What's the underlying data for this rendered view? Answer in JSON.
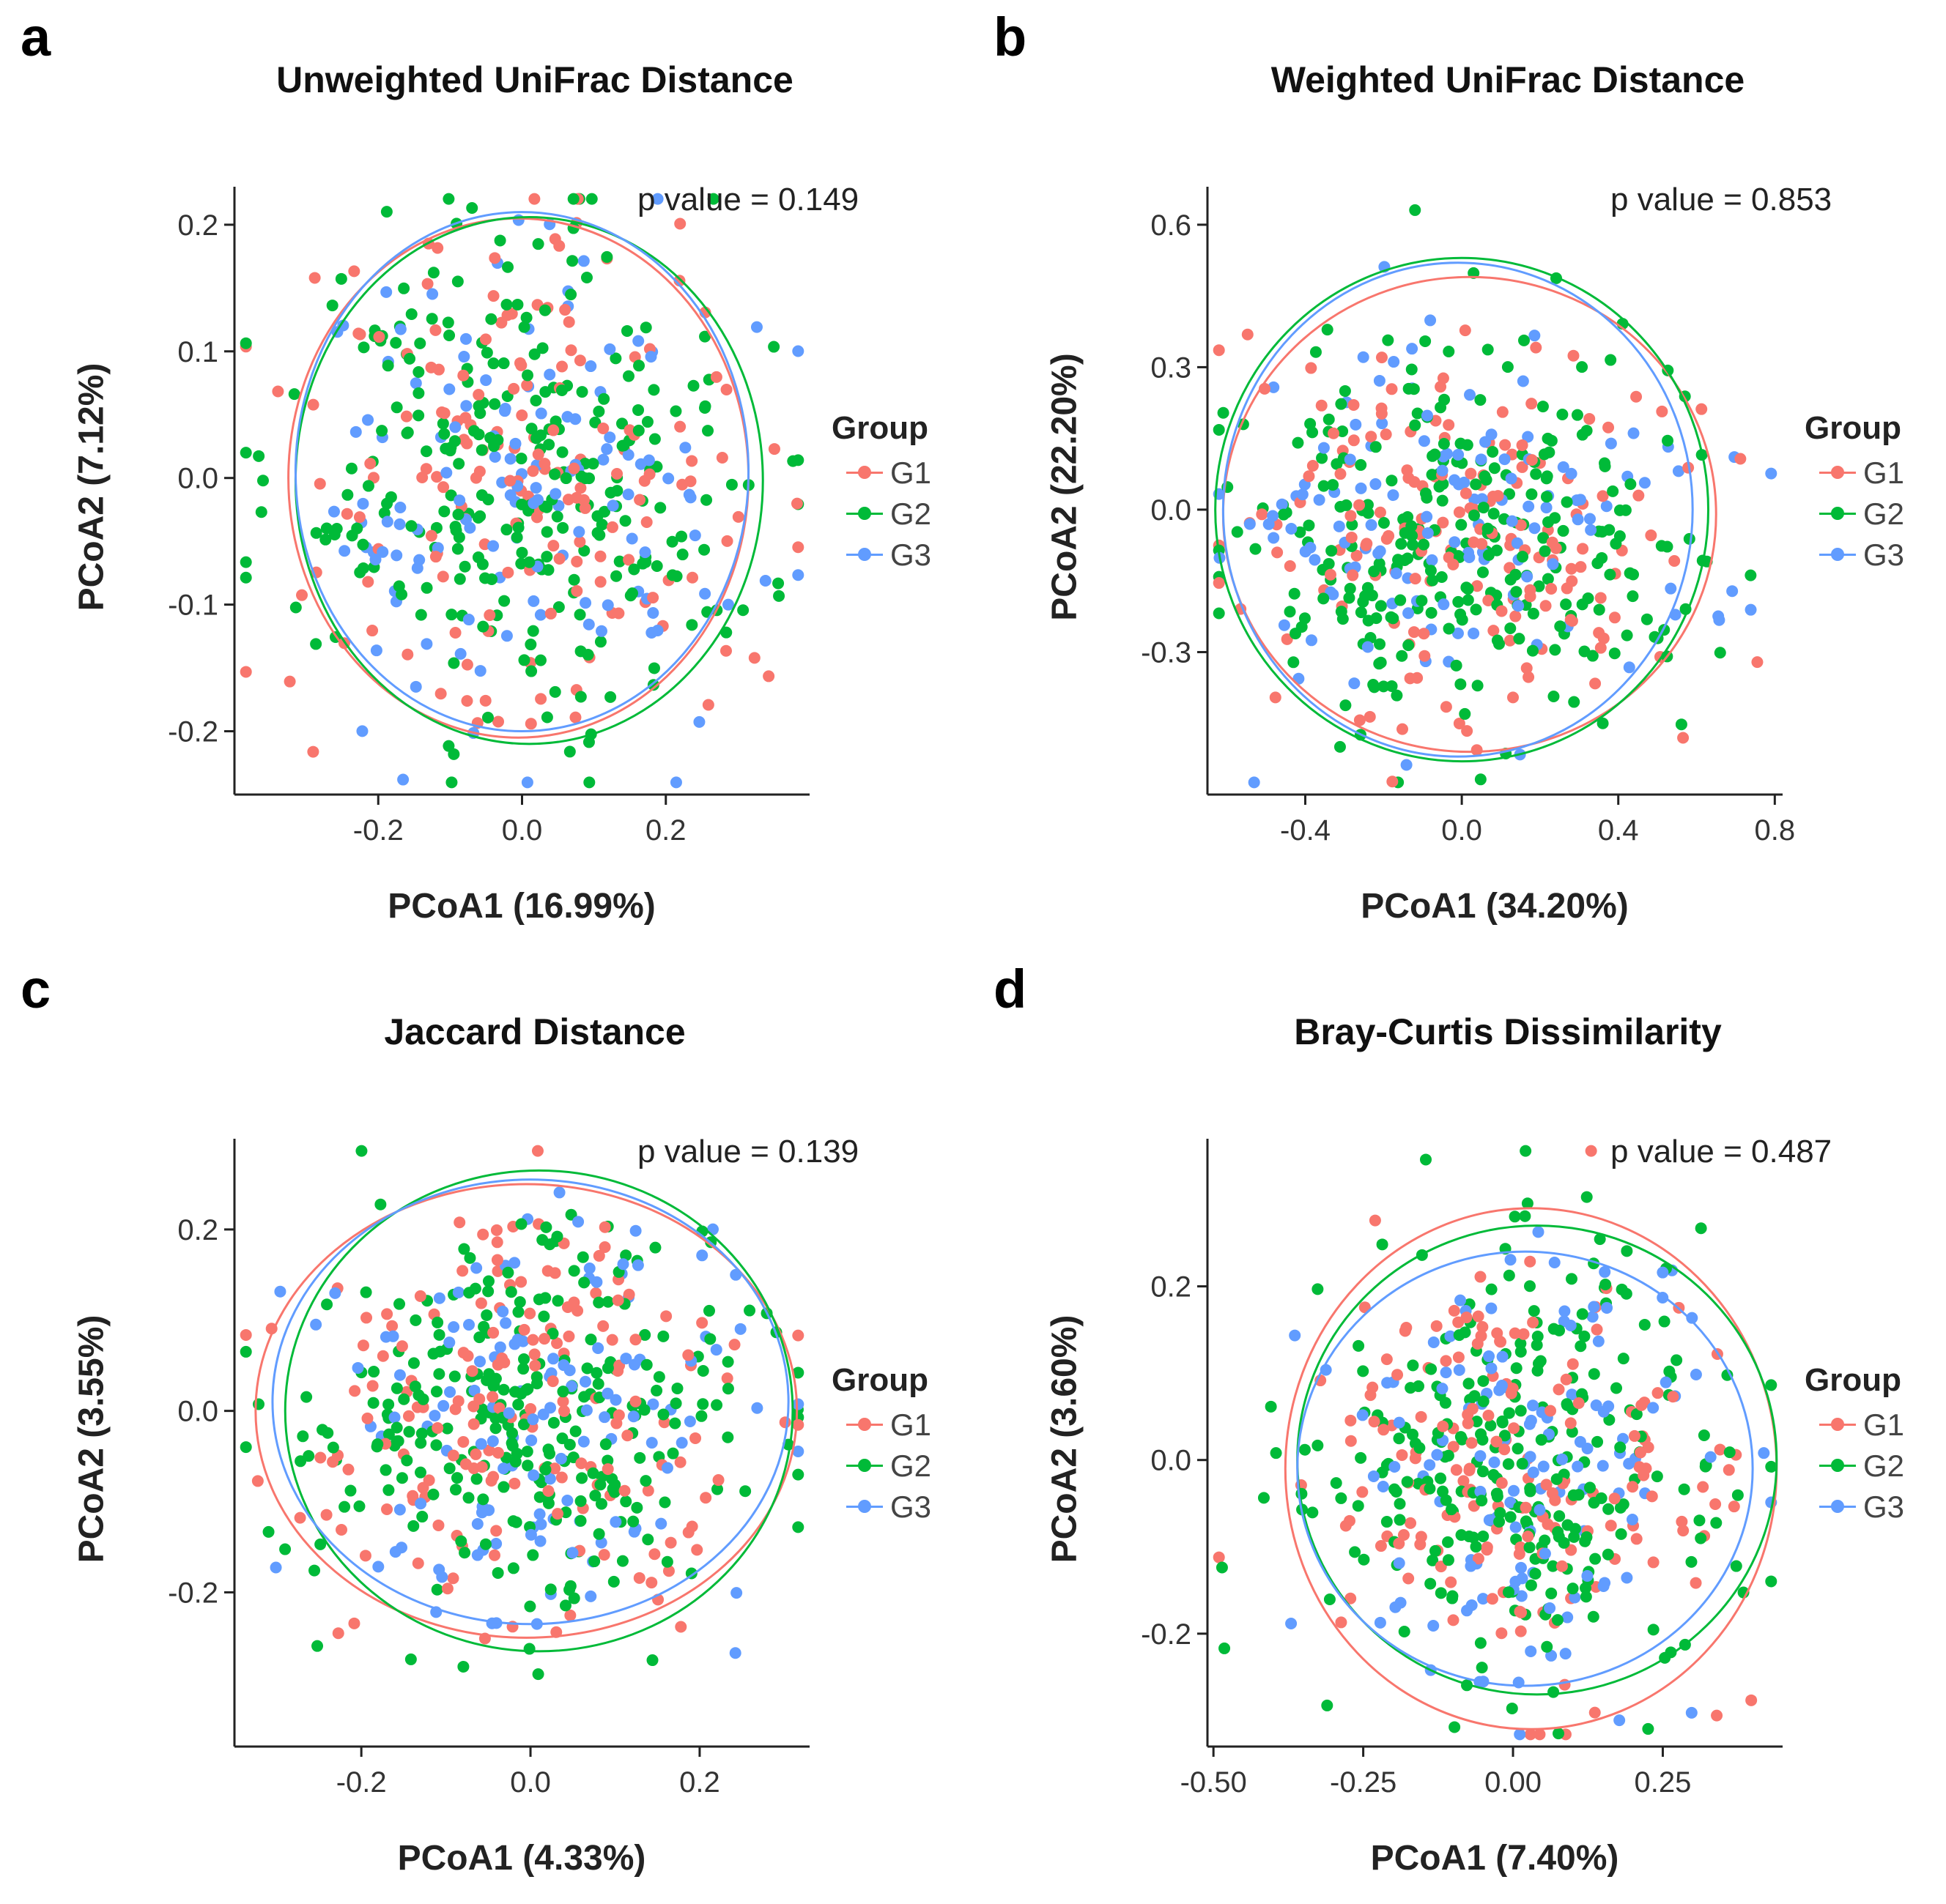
{
  "colors": {
    "G1": "#F8766D",
    "G2": "#00BA38",
    "G3": "#619CFF"
  },
  "legend": {
    "title": "Group",
    "items": [
      "G1",
      "G2",
      "G3"
    ]
  },
  "panels": [
    {
      "label": "a",
      "title": "Unweighted UniFrac Distance",
      "pvalue": "p value = 0.149",
      "xlabel": "PCoA1 (16.99%)",
      "ylabel": "PCoA2 (7.12%)"
    },
    {
      "label": "b",
      "title": "Weighted UniFrac Distance",
      "pvalue": "p value = 0.853",
      "xlabel": "PCoA1 (34.20%)",
      "ylabel": "PCoA2 (22.20%)"
    },
    {
      "label": "c",
      "title": "Jaccard Distance",
      "pvalue": "p value = 0.139",
      "xlabel": "PCoA1 (4.33%)",
      "ylabel": "PCoA2 (3.55%)"
    },
    {
      "label": "d",
      "title": "Bray-Curtis Dissimilarity",
      "pvalue": "p value = 0.487",
      "xlabel": "PCoA1 (7.40%)",
      "ylabel": "PCoA2 (3.60%)"
    }
  ],
  "chart_data": [
    {
      "type": "scatter",
      "title": "Unweighted UniFrac Distance",
      "xlabel": "PCoA1 (16.99%)",
      "ylabel": "PCoA2 (7.12%)",
      "xlim": [
        -0.4,
        0.4
      ],
      "ylim": [
        -0.25,
        0.23
      ],
      "xticks": [
        -0.2,
        0.0,
        0.2
      ],
      "xtick_labels": [
        "-0.2",
        "0.0",
        "0.2"
      ],
      "yticks": [
        -0.2,
        -0.1,
        0.0,
        0.1,
        0.2
      ],
      "ytick_labels": [
        "-0.2",
        "-0.1",
        "0.0",
        "0.1",
        "0.2"
      ],
      "annotation": "p value = 0.149",
      "legend_title": "Group",
      "ellipses": [
        {
          "name": "G1",
          "center": [
            -0.005,
            0.0
          ],
          "radius": [
            0.32,
            0.205
          ]
        },
        {
          "name": "G2",
          "center": [
            0.01,
            -0.002
          ],
          "radius": [
            0.325,
            0.208
          ]
        },
        {
          "name": "G3",
          "center": [
            0.0,
            0.005
          ],
          "radius": [
            0.315,
            0.205
          ]
        }
      ],
      "series": [
        {
          "name": "G1",
          "center": [
            0.0,
            0.0
          ],
          "spread": [
            0.16,
            0.1
          ],
          "n": 170
        },
        {
          "name": "G2",
          "center": [
            0.0,
            0.0
          ],
          "spread": [
            0.16,
            0.1
          ],
          "n": 280
        },
        {
          "name": "G3",
          "center": [
            0.0,
            0.0
          ],
          "spread": [
            0.16,
            0.1
          ],
          "n": 130
        }
      ]
    },
    {
      "type": "scatter",
      "title": "Weighted UniFrac Distance",
      "xlabel": "PCoA1 (34.20%)",
      "ylabel": "PCoA2 (22.20%)",
      "xlim": [
        -0.65,
        0.82
      ],
      "ylim": [
        -0.6,
        0.68
      ],
      "xticks": [
        -0.4,
        0.0,
        0.4,
        0.8
      ],
      "xtick_labels": [
        "-0.4",
        "0.0",
        "0.4",
        "0.8"
      ],
      "yticks": [
        -0.3,
        0.0,
        0.3,
        0.6
      ],
      "ytick_labels": [
        "-0.3",
        "0.0",
        "0.3",
        "0.6"
      ],
      "annotation": "p value = 0.853",
      "legend_title": "Group",
      "ellipses": [
        {
          "name": "G1",
          "center": [
            0.02,
            -0.01
          ],
          "radius": [
            0.63,
            0.5
          ]
        },
        {
          "name": "G2",
          "center": [
            0.0,
            0.0
          ],
          "radius": [
            0.63,
            0.53
          ]
        },
        {
          "name": "G3",
          "center": [
            -0.01,
            0.0
          ],
          "radius": [
            0.6,
            0.52
          ]
        }
      ],
      "series": [
        {
          "name": "G1",
          "center": [
            0.0,
            -0.05
          ],
          "spread": [
            0.3,
            0.2
          ],
          "n": 170
        },
        {
          "name": "G2",
          "center": [
            0.0,
            -0.05
          ],
          "spread": [
            0.3,
            0.2
          ],
          "n": 280
        },
        {
          "name": "G3",
          "center": [
            0.0,
            -0.05
          ],
          "spread": [
            0.3,
            0.2
          ],
          "n": 130
        }
      ]
    },
    {
      "type": "scatter",
      "title": "Jaccard Distance",
      "xlabel": "PCoA1 (4.33%)",
      "ylabel": "PCoA2 (3.55%)",
      "xlim": [
        -0.35,
        0.33
      ],
      "ylim": [
        -0.37,
        0.3
      ],
      "xticks": [
        -0.2,
        0.0,
        0.2
      ],
      "xtick_labels": [
        "-0.2",
        "0.0",
        "0.2"
      ],
      "yticks": [
        -0.2,
        0.0,
        0.2
      ],
      "ytick_labels": [
        "-0.2",
        "0.0",
        "0.2"
      ],
      "annotation": "p value = 0.139",
      "legend_title": "Group",
      "ellipses": [
        {
          "name": "G1",
          "center": [
            -0.005,
            0.0
          ],
          "radius": [
            0.32,
            0.25
          ]
        },
        {
          "name": "G2",
          "center": [
            0.01,
            0.0
          ],
          "radius": [
            0.3,
            0.265
          ]
        },
        {
          "name": "G3",
          "center": [
            0.0,
            0.01
          ],
          "radius": [
            0.305,
            0.245
          ]
        }
      ],
      "series": [
        {
          "name": "G1",
          "center": [
            0.0,
            0.0
          ],
          "spread": [
            0.13,
            0.11
          ],
          "n": 170
        },
        {
          "name": "G2",
          "center": [
            0.0,
            0.0
          ],
          "spread": [
            0.13,
            0.11
          ],
          "n": 280
        },
        {
          "name": "G3",
          "center": [
            0.0,
            0.0
          ],
          "spread": [
            0.13,
            0.11
          ],
          "n": 130
        }
      ]
    },
    {
      "type": "scatter",
      "title": "Bray-Curtis Dissimilarity",
      "xlabel": "PCoA1 (7.40%)",
      "ylabel": "PCoA2 (3.60%)",
      "xlim": [
        -0.51,
        0.45
      ],
      "ylim": [
        -0.33,
        0.37
      ],
      "xticks": [
        -0.5,
        -0.25,
        0.0,
        0.25
      ],
      "xtick_labels": [
        "-0.50",
        "-0.25",
        "0.00",
        "0.25"
      ],
      "yticks": [
        -0.2,
        0.0,
        0.2
      ],
      "ytick_labels": [
        "-0.2",
        "0.0",
        "0.2"
      ],
      "annotation": "p value = 0.487",
      "legend_title": "Group",
      "ellipses": [
        {
          "name": "G1",
          "center": [
            0.03,
            -0.01
          ],
          "radius": [
            0.41,
            0.3
          ]
        },
        {
          "name": "G2",
          "center": [
            0.04,
            0.0
          ],
          "radius": [
            0.4,
            0.27
          ]
        },
        {
          "name": "G3",
          "center": [
            0.02,
            -0.01
          ],
          "radius": [
            0.38,
            0.25
          ]
        }
      ],
      "series": [
        {
          "name": "G1",
          "center": [
            0.0,
            0.0
          ],
          "spread": [
            0.16,
            0.12
          ],
          "n": 170
        },
        {
          "name": "G2",
          "center": [
            0.0,
            0.0
          ],
          "spread": [
            0.16,
            0.12
          ],
          "n": 280
        },
        {
          "name": "G3",
          "center": [
            0.0,
            0.0
          ],
          "spread": [
            0.16,
            0.12
          ],
          "n": 130
        }
      ]
    }
  ]
}
